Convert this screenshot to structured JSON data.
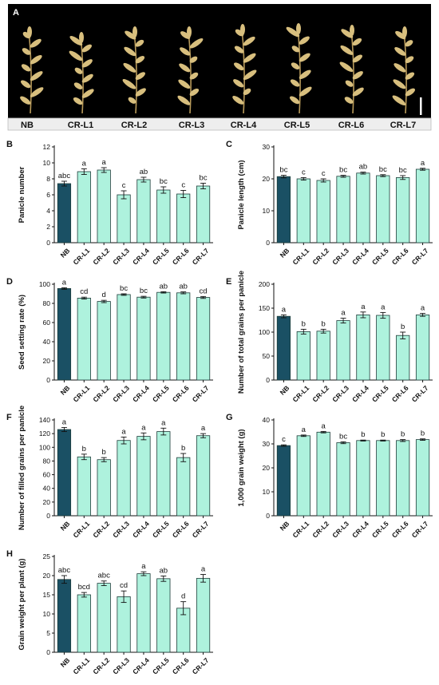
{
  "panel_a": {
    "letter": "A",
    "labels": [
      "NB",
      "CR-L1",
      "CR-L2",
      "CR-L3",
      "CR-L4",
      "CR-L5",
      "CR-L6",
      "CR-L7"
    ]
  },
  "colors": {
    "control_bar": "#1a5064",
    "mutant_bar": "#aef2dd",
    "bar_stroke": "#1e3d3a",
    "photo_bg": "#000000",
    "panicle": "#d8bf7e",
    "label_strip": "#eeeeee"
  },
  "chart_data": [
    {
      "letter": "B",
      "type": "bar",
      "ylabel": "Panicle number",
      "categories": [
        "NB",
        "CR-L1",
        "CR-L2",
        "CR-L3",
        "CR-L4",
        "CR-L5",
        "CR-L6",
        "CR-L7"
      ],
      "values": [
        7.4,
        8.9,
        9.1,
        6.0,
        7.9,
        6.6,
        6.1,
        7.1
      ],
      "errors": [
        0.3,
        0.35,
        0.3,
        0.5,
        0.3,
        0.4,
        0.45,
        0.35
      ],
      "letters": [
        "abc",
        "a",
        "a",
        "c",
        "ab",
        "bc",
        "c",
        "bc"
      ],
      "ylim": [
        0,
        12
      ],
      "yticks": [
        0,
        2,
        4,
        6,
        8,
        10,
        12
      ]
    },
    {
      "letter": "C",
      "type": "bar",
      "ylabel": "Panicle length (cm)",
      "categories": [
        "NB",
        "CR-L1",
        "CR-L2",
        "CR-L3",
        "CR-L4",
        "CR-L5",
        "CR-L6",
        "CR-L7"
      ],
      "values": [
        20.7,
        20.0,
        19.5,
        20.8,
        21.8,
        21.0,
        20.4,
        23.0
      ],
      "errors": [
        0.4,
        0.4,
        0.5,
        0.3,
        0.3,
        0.3,
        0.6,
        0.3
      ],
      "letters": [
        "bc",
        "c",
        "c",
        "bc",
        "ab",
        "bc",
        "bc",
        "a"
      ],
      "ylim": [
        0,
        30
      ],
      "yticks": [
        0,
        10,
        20,
        30
      ]
    },
    {
      "letter": "D",
      "type": "bar",
      "ylabel": "Seed setting rate (%)",
      "categories": [
        "NB",
        "CR-L1",
        "CR-L2",
        "CR-L3",
        "CR-L4",
        "CR-L5",
        "CR-L6",
        "CR-L7"
      ],
      "values": [
        95.5,
        85.5,
        82.0,
        89.2,
        86.5,
        91.5,
        91.0,
        86.2
      ],
      "errors": [
        0.8,
        1.0,
        1.2,
        0.8,
        0.9,
        0.7,
        1.0,
        1.0
      ],
      "letters": [
        "a",
        "cd",
        "d",
        "bc",
        "bc",
        "ab",
        "ab",
        "cd"
      ],
      "ylim": [
        0,
        100
      ],
      "yticks": [
        0,
        20,
        40,
        60,
        80,
        100
      ]
    },
    {
      "letter": "E",
      "type": "bar",
      "ylabel": "Number of total grains per panicle",
      "categories": [
        "NB",
        "CR-L1",
        "CR-L2",
        "CR-L3",
        "CR-L4",
        "CR-L5",
        "CR-L6",
        "CR-L7"
      ],
      "values": [
        133,
        101,
        102,
        124,
        136,
        135,
        93,
        136
      ],
      "errors": [
        3,
        5,
        4,
        5,
        6,
        6,
        7,
        3
      ],
      "letters": [
        "a",
        "b",
        "b",
        "a",
        "a",
        "a",
        "b",
        "a"
      ],
      "ylim": [
        0,
        200
      ],
      "yticks": [
        0,
        50,
        100,
        150,
        200
      ]
    },
    {
      "letter": "F",
      "type": "bar",
      "ylabel": "Number of filled grains per panicle",
      "categories": [
        "NB",
        "CR-L1",
        "CR-L2",
        "CR-L3",
        "CR-L4",
        "CR-L5",
        "CR-L6",
        "CR-L7"
      ],
      "values": [
        126,
        86,
        82,
        110,
        116,
        123,
        85,
        117
      ],
      "errors": [
        3,
        4,
        3,
        5,
        5,
        5,
        6,
        3
      ],
      "letters": [
        "a",
        "b",
        "b",
        "a",
        "a",
        "a",
        "b",
        "a"
      ],
      "ylim": [
        0,
        140
      ],
      "yticks": [
        0,
        20,
        40,
        60,
        80,
        100,
        120,
        140
      ]
    },
    {
      "letter": "G",
      "type": "bar",
      "ylabel": "1,000 grain weight (g)",
      "categories": [
        "NB",
        "CR-L1",
        "CR-L2",
        "CR-L3",
        "CR-L4",
        "CR-L5",
        "CR-L6",
        "CR-L7"
      ],
      "values": [
        29.3,
        33.4,
        34.9,
        30.5,
        31.4,
        31.4,
        31.4,
        31.8
      ],
      "errors": [
        0.3,
        0.3,
        0.3,
        0.4,
        0.2,
        0.2,
        0.4,
        0.3
      ],
      "letters": [
        "c",
        "a",
        "a",
        "bc",
        "b",
        "b",
        "b",
        "b"
      ],
      "ylim": [
        0,
        40
      ],
      "yticks": [
        0,
        10,
        20,
        30,
        40
      ]
    },
    {
      "letter": "H",
      "type": "bar",
      "ylabel": "Grain weight per plant (g)",
      "categories": [
        "NB",
        "CR-L1",
        "CR-L2",
        "CR-L3",
        "CR-L4",
        "CR-L5",
        "CR-L6",
        "CR-L7"
      ],
      "values": [
        19.0,
        15.0,
        18.0,
        14.5,
        20.5,
        19.2,
        11.5,
        19.3
      ],
      "errors": [
        1.0,
        0.6,
        0.6,
        1.5,
        0.5,
        0.7,
        1.7,
        1.0
      ],
      "letters": [
        "abc",
        "bcd",
        "abc",
        "cd",
        "a",
        "ab",
        "d",
        "a"
      ],
      "ylim": [
        0,
        25
      ],
      "yticks": [
        0,
        5,
        10,
        15,
        20,
        25
      ]
    }
  ]
}
